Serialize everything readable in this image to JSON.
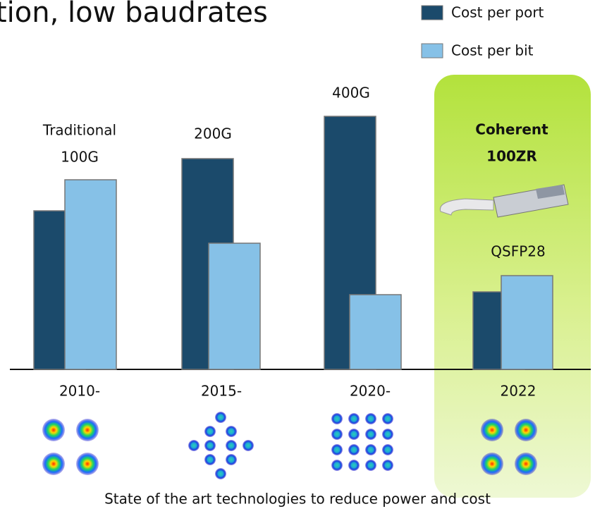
{
  "chart_data": {
    "type": "bar",
    "title": "tion, low baudrates",
    "categories": [
      "2010-",
      "2015-",
      "2020-",
      "2022"
    ],
    "series": [
      {
        "name": "Cost per port",
        "color": "#1b4a6b",
        "values": [
          225,
          299,
          359,
          110
        ]
      },
      {
        "name": "Cost per bit",
        "color": "#86c1e7",
        "values": [
          269,
          179,
          106,
          133
        ]
      }
    ],
    "ylim": [
      0,
      400
    ],
    "annotations": [
      [
        "Traditional",
        "100G"
      ],
      [
        "200G"
      ],
      [
        "400G"
      ],
      [
        "Coherent",
        "100ZR"
      ],
      [
        "QSFP28"
      ]
    ],
    "caption": "State of the art technologies to reduce power and cost"
  }
}
